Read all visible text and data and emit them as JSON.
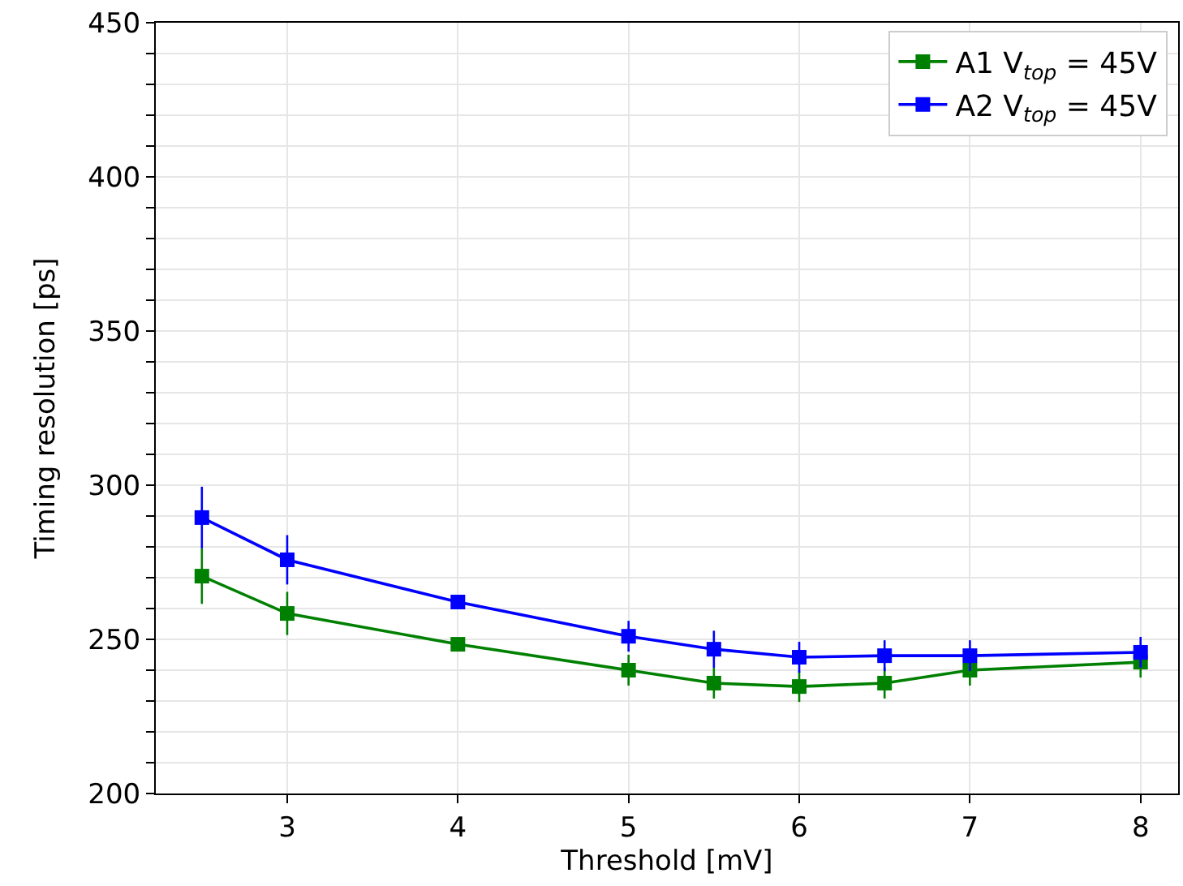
{
  "chart_data": {
    "type": "line",
    "xlabel": "Threshold [mV]",
    "ylabel": "Timing resolution [ps]",
    "x": [
      2.5,
      3,
      4,
      5,
      5.5,
      6,
      6.5,
      7,
      8
    ],
    "series": [
      {
        "name": "A1 V$_{top}$ = 45V",
        "color": "#008000",
        "values": [
          270.5,
          258.4,
          248.4,
          240,
          235.8,
          234.7,
          235.8,
          240,
          242.6
        ],
        "errors": [
          9,
          7,
          2,
          5,
          5,
          5,
          5,
          5,
          5
        ]
      },
      {
        "name": "A2 V$_{top}$ = 45V",
        "color": "#0000ff",
        "values": [
          289.5,
          275.8,
          262.1,
          251,
          246.8,
          244.2,
          244.7,
          244.7,
          245.8
        ],
        "errors": [
          10,
          8,
          2,
          5,
          6,
          5,
          5,
          5,
          5
        ]
      }
    ],
    "xlim": [
      2.23,
      8.22
    ],
    "ylim": [
      200,
      450
    ],
    "xticks": [
      3,
      4,
      5,
      6,
      7,
      8
    ],
    "yticks": [
      200,
      {
        "value": 210,
        "label": null
      },
      {
        "value": 220,
        "label": null
      },
      {
        "value": 230,
        "label": null
      },
      {
        "value": 240,
        "label": null
      },
      250,
      {
        "value": 260,
        "label": null
      },
      {
        "value": 270,
        "label": null
      },
      {
        "value": 280,
        "label": null
      },
      {
        "value": 290,
        "label": null
      },
      300,
      {
        "value": 310,
        "label": null
      },
      {
        "value": 320,
        "label": null
      },
      {
        "value": 330,
        "label": null
      },
      {
        "value": 340,
        "label": null
      },
      350,
      {
        "value": 360,
        "label": null
      },
      {
        "value": 370,
        "label": null
      },
      {
        "value": 380,
        "label": null
      },
      {
        "value": 390,
        "label": null
      },
      400,
      {
        "value": 410,
        "label": null
      },
      {
        "value": 420,
        "label": null
      },
      {
        "value": 430,
        "label": null
      },
      {
        "value": 440,
        "label": null
      },
      450
    ],
    "grid": true,
    "legend": "top right",
    "marker": "square",
    "line_style": "solid"
  }
}
